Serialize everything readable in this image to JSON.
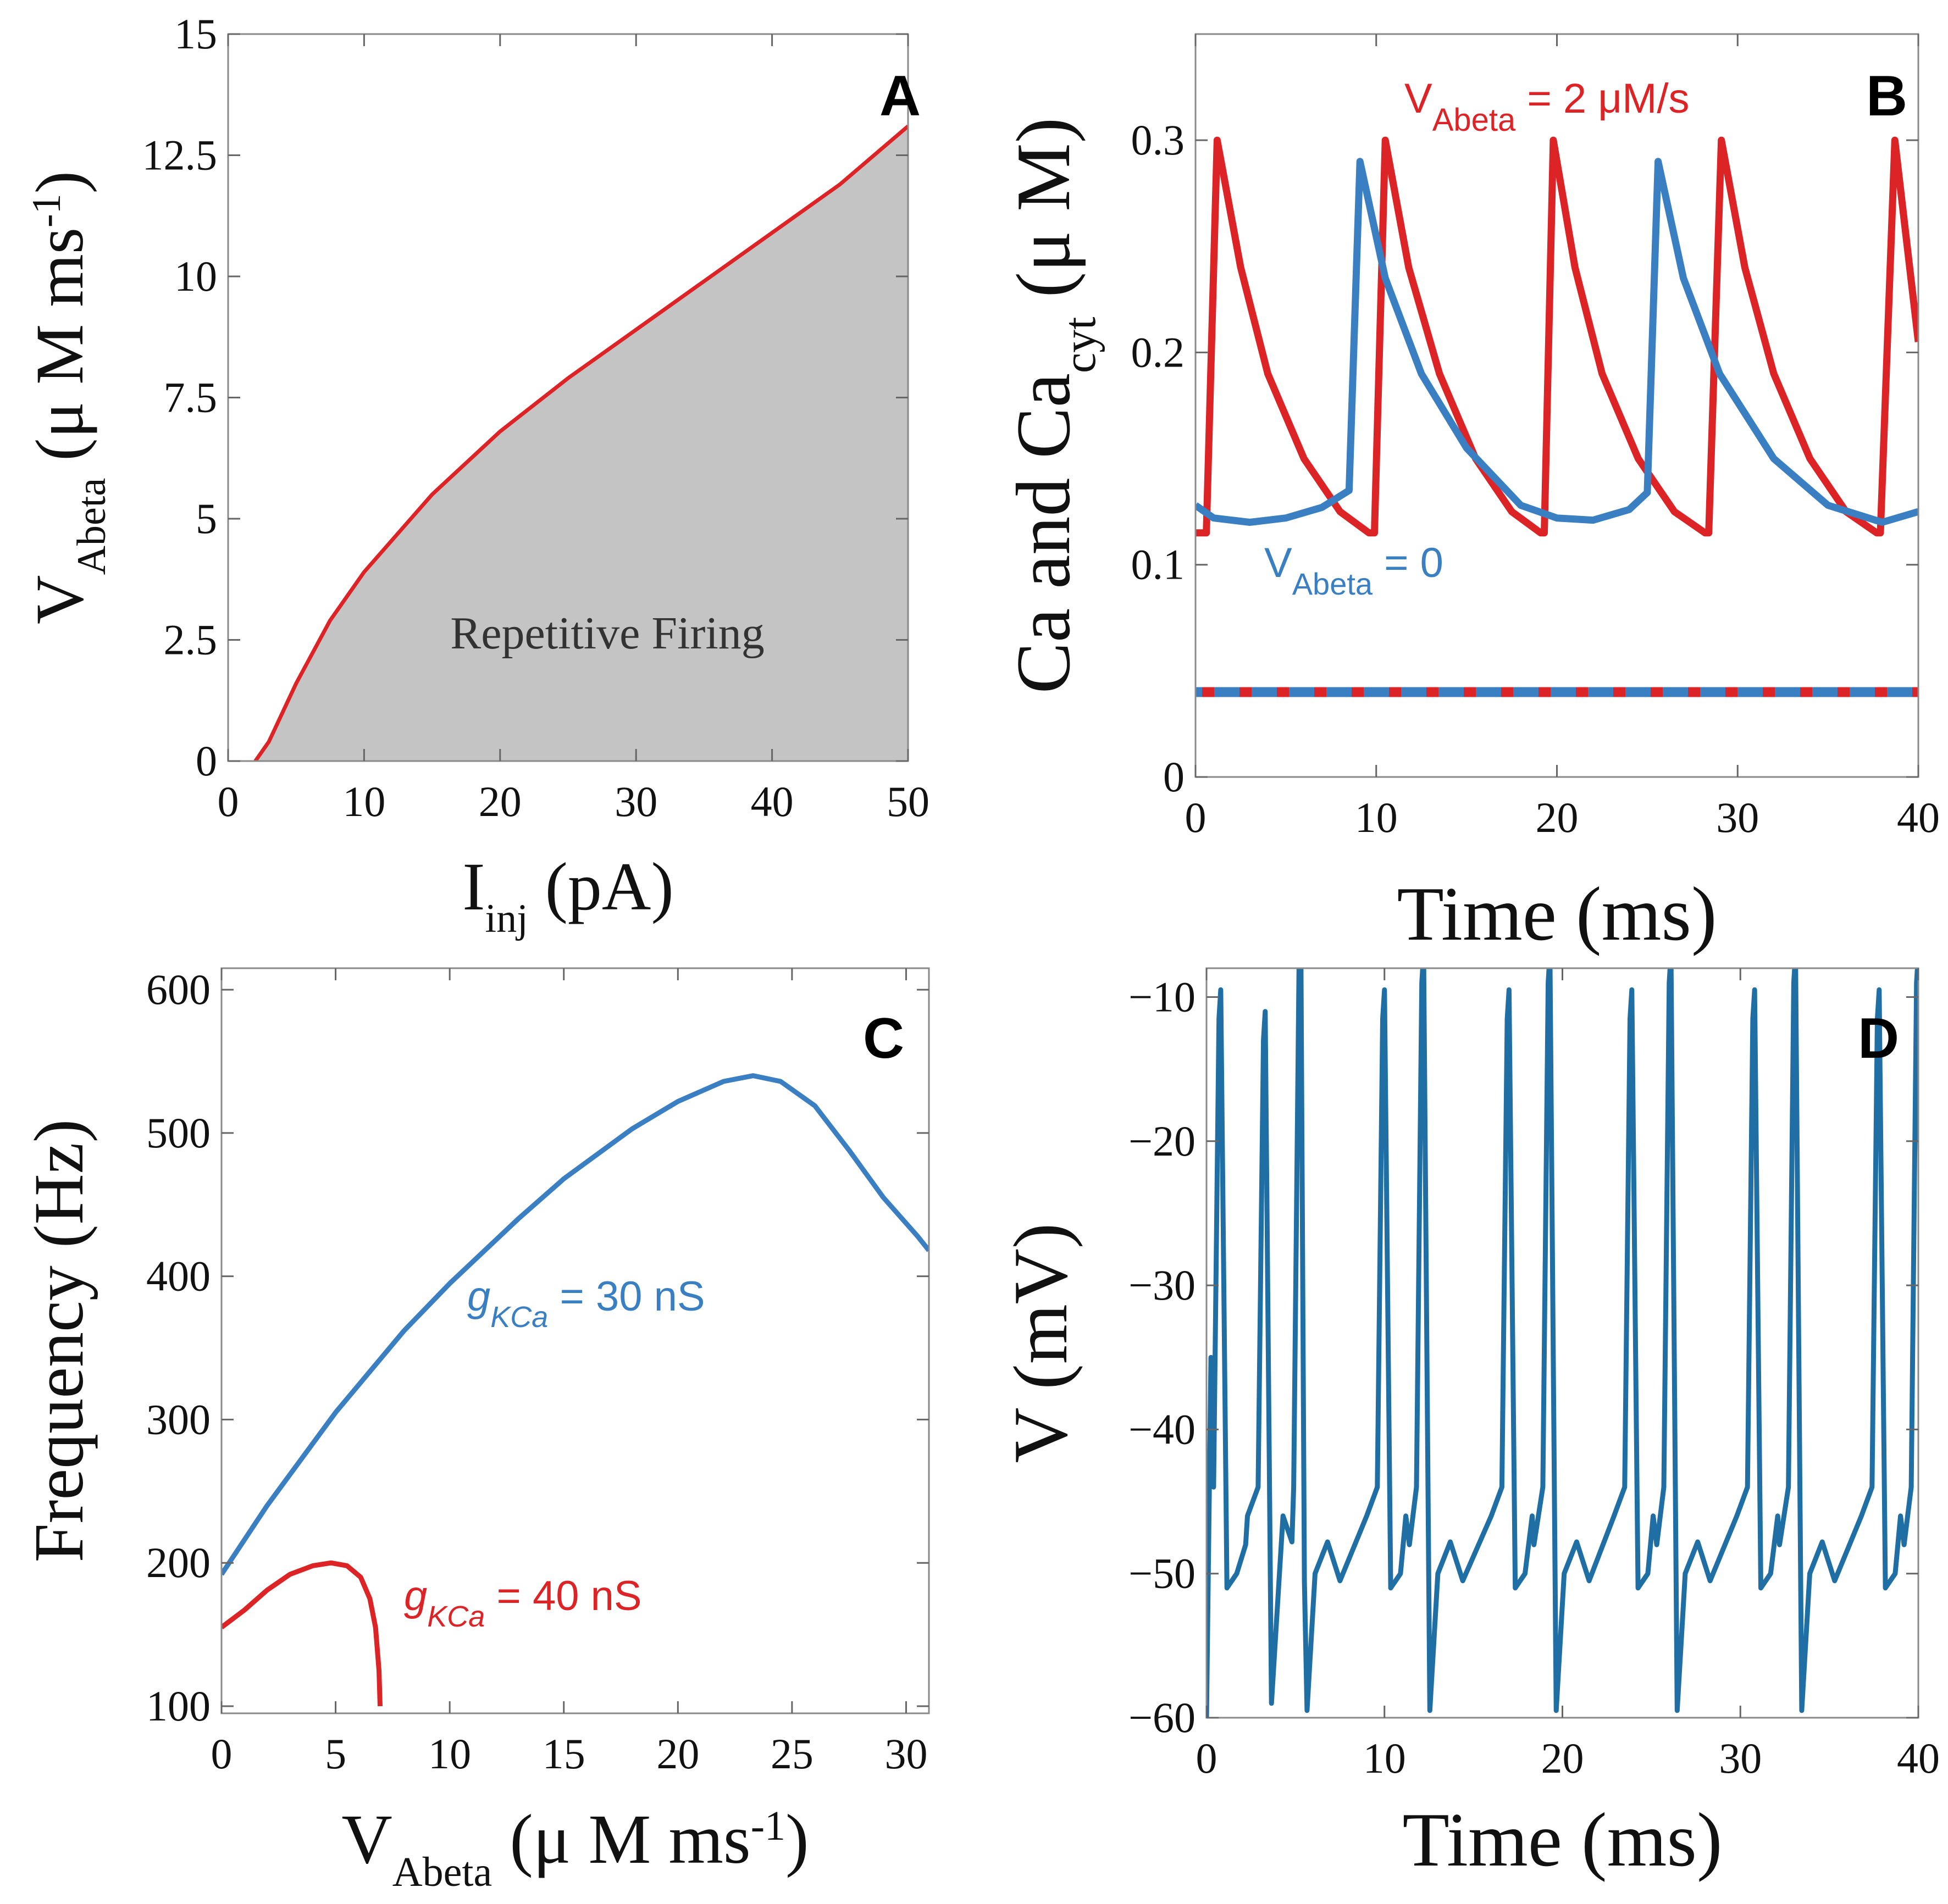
{
  "colors": {
    "red": "#dc2326",
    "blue": "#3a7fc1",
    "blue_dark": "#1f6fa5",
    "region": "#c4c4c4"
  },
  "chart_data": [
    {
      "id": "A",
      "type": "area",
      "panel_label": "A",
      "xlabel": {
        "main": "I",
        "sub": "inj",
        "tail": " (pA)"
      },
      "ylabel": {
        "main": "V",
        "sub": "Abeta",
        "tail": " (μ M ms",
        "sup": "-1",
        "end": ")"
      },
      "xlim": [
        0,
        50
      ],
      "ylim": [
        0,
        15
      ],
      "xticks": [
        0,
        10,
        20,
        30,
        40,
        50
      ],
      "xtick_labels": [
        "0",
        "10",
        "20",
        "30",
        "40",
        "50"
      ],
      "yticks": [
        0,
        2.5,
        5,
        7.5,
        10,
        12.5,
        15
      ],
      "ytick_labels": [
        "0",
        "2.5",
        "5",
        "7.5",
        "10",
        "12.5",
        "15"
      ],
      "region_label": "Repetitive Firing",
      "series": [
        {
          "name": "boundary",
          "color": "red",
          "x": [
            2,
            3,
            5,
            7.5,
            10,
            15,
            20,
            25,
            30,
            35,
            40,
            45,
            50
          ],
          "y": [
            0,
            0.4,
            1.6,
            2.9,
            3.9,
            5.5,
            6.8,
            7.9,
            8.9,
            9.9,
            10.9,
            11.9,
            13.1
          ]
        }
      ]
    },
    {
      "id": "B",
      "type": "line",
      "panel_label": "B",
      "xlabel": {
        "main": "Time (ms)"
      },
      "ylabel": {
        "main": "Ca and Ca",
        "sub": "cyt",
        "tail": " (μ M)"
      },
      "xlim": [
        0,
        40
      ],
      "ylim": [
        0,
        0.35
      ],
      "xticks": [
        0,
        10,
        20,
        30,
        40
      ],
      "xtick_labels": [
        "0",
        "10",
        "20",
        "30",
        "40"
      ],
      "yticks": [
        0,
        0.1,
        0.2,
        0.3
      ],
      "ytick_labels": [
        "0",
        "0.1",
        "0.2",
        "0.3"
      ],
      "annotations": [
        {
          "main": "V",
          "sub": "Abeta",
          "tail": " = 2 μM/s",
          "color": "red"
        },
        {
          "main": "V",
          "sub": "Abeta",
          "tail": " = 0",
          "color": "blue"
        }
      ],
      "series": [
        {
          "name": "Ca, V_Abeta = 2 μM/s",
          "color": "red",
          "style": "solid",
          "x": [
            0,
            0.6,
            1.2,
            2.5,
            4,
            6,
            8,
            9.6,
            9.9,
            10.5,
            11.8,
            13.5,
            15.5,
            17.5,
            19.1,
            19.3,
            19.8,
            21,
            22.5,
            24.5,
            26.5,
            28.2,
            28.4,
            29.1,
            30.4,
            32,
            34,
            36,
            37.7,
            37.9,
            38.7,
            40
          ],
          "y": [
            0.115,
            0.115,
            0.3,
            0.24,
            0.19,
            0.15,
            0.125,
            0.115,
            0.115,
            0.3,
            0.24,
            0.19,
            0.15,
            0.125,
            0.115,
            0.115,
            0.3,
            0.24,
            0.19,
            0.15,
            0.125,
            0.115,
            0.115,
            0.3,
            0.24,
            0.19,
            0.15,
            0.125,
            0.115,
            0.115,
            0.3,
            0.205
          ]
        },
        {
          "name": "Ca, V_Abeta = 0",
          "color": "blue",
          "style": "solid",
          "x": [
            0,
            1,
            3,
            5,
            7,
            8.5,
            9.1,
            10.5,
            12.5,
            15,
            18,
            20,
            22,
            24,
            25,
            25.6,
            27,
            29,
            32,
            35,
            38,
            40
          ],
          "y": [
            0.128,
            0.122,
            0.12,
            0.122,
            0.127,
            0.135,
            0.29,
            0.235,
            0.19,
            0.155,
            0.128,
            0.122,
            0.121,
            0.126,
            0.134,
            0.29,
            0.235,
            0.19,
            0.15,
            0.128,
            0.12,
            0.125
          ]
        },
        {
          "name": "Ca_cyt, V_Abeta = 2 μM/s",
          "color": "red",
          "style": "dashed",
          "x": [
            0,
            40
          ],
          "y": [
            0.04,
            0.04
          ]
        },
        {
          "name": "Ca_cyt, V_Abeta = 0",
          "color": "blue",
          "style": "dashed",
          "x": [
            0,
            40
          ],
          "y": [
            0.04,
            0.04
          ]
        }
      ]
    },
    {
      "id": "C",
      "type": "line",
      "panel_label": "C",
      "xlabel": {
        "main": "V",
        "sub": "Abeta",
        "tail": " (μ M ms",
        "sup": "-1",
        "end": ")"
      },
      "ylabel": {
        "main": "Frequency (Hz)"
      },
      "xlim": [
        0,
        31
      ],
      "ylim": [
        95,
        615
      ],
      "xticks": [
        0,
        5,
        10,
        15,
        20,
        25,
        30
      ],
      "xtick_labels": [
        "0",
        "5",
        "10",
        "15",
        "20",
        "25",
        "30"
      ],
      "yticks": [
        100,
        200,
        300,
        400,
        500,
        600
      ],
      "ytick_labels": [
        "100",
        "200",
        "300",
        "400",
        "500",
        "600"
      ],
      "annotations": [
        {
          "main": "g",
          "sub": "KCa",
          "tail": " = 30 nS",
          "color": "blue"
        },
        {
          "main": "g",
          "sub": "KCa",
          "tail": " = 40 nS",
          "color": "red"
        }
      ],
      "series": [
        {
          "name": "gKCa = 30 nS",
          "color": "blue",
          "x": [
            0,
            2,
            5,
            8,
            10,
            13,
            15,
            18,
            20,
            22,
            23.3,
            24.5,
            26,
            27.5,
            29,
            30.5,
            31
          ],
          "y": [
            192,
            240,
            305,
            362,
            395,
            440,
            468,
            503,
            522,
            536,
            540,
            536,
            519,
            488,
            455,
            428,
            418
          ]
        },
        {
          "name": "gKCa = 40 nS",
          "color": "red",
          "x": [
            0,
            1,
            2,
            3,
            4,
            4.8,
            5.5,
            6.1,
            6.5,
            6.75,
            6.9,
            6.95
          ],
          "y": [
            155,
            167,
            181,
            192,
            198,
            200,
            198,
            190,
            175,
            155,
            125,
            100
          ]
        }
      ]
    },
    {
      "id": "D",
      "type": "line",
      "panel_label": "D",
      "xlabel": {
        "main": "Time (ms)"
      },
      "ylabel": {
        "main": "V (mV)"
      },
      "xlim": [
        0,
        40
      ],
      "ylim": [
        -60,
        -8
      ],
      "xticks": [
        0,
        10,
        20,
        30,
        40
      ],
      "xtick_labels": [
        "0",
        "10",
        "20",
        "30",
        "40"
      ],
      "yticks": [
        -60,
        -50,
        -40,
        -30,
        -20,
        -10
      ],
      "ytick_labels": [
        "−60",
        "−50",
        "−40",
        "−30",
        "−20",
        "−10"
      ],
      "spike_times": [
        0.7,
        3.2,
        5.2,
        9.9,
        12.1,
        16.9,
        19.2,
        23.8,
        26.0,
        30.7,
        33.0,
        37.7,
        39.9
      ],
      "spike_peaks": [
        -11.5,
        -13,
        -8,
        -11.5,
        -9,
        -11.5,
        -9,
        -11.5,
        -9,
        -11.5,
        -9,
        -11.5,
        -9
      ],
      "spike_troughs": [
        -51,
        -59,
        -59.5,
        -51,
        -59.5,
        -51,
        -59.5,
        -51,
        -59.5,
        -51,
        -59.5,
        -51,
        -59.5
      ]
    }
  ]
}
